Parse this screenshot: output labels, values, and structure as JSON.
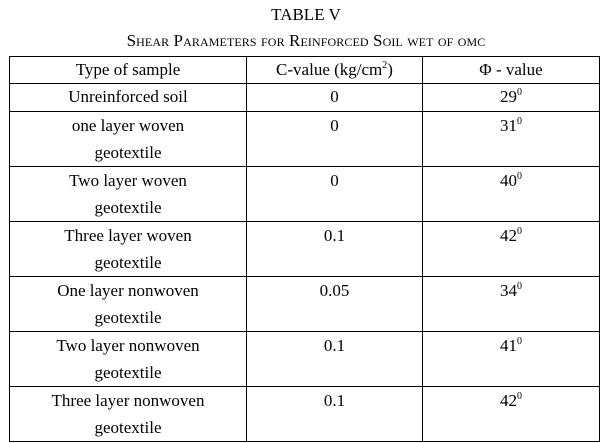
{
  "title": "TABLE V",
  "caption": "Shear Parameters for Reinforced Soil wet of omc",
  "headers": {
    "sample": "Type of sample",
    "c_value_prefix": "C-value (kg/cm",
    "c_value_sup": "2",
    "c_value_suffix": ")",
    "phi_value": "Φ - value"
  },
  "rows": [
    {
      "sample_line1": "Unreinforced soil",
      "sample_line2": "",
      "c": "0",
      "phi": "29",
      "phi_sup": "0"
    },
    {
      "sample_line1": "one layer woven",
      "sample_line2": "geotextile",
      "c": "0",
      "phi": "31",
      "phi_sup": "0"
    },
    {
      "sample_line1": "Two layer woven",
      "sample_line2": "geotextile",
      "c": "0",
      "phi": "40",
      "phi_sup": "0"
    },
    {
      "sample_line1": "Three layer woven",
      "sample_line2": "geotextile",
      "c": "0.1",
      "phi": "42",
      "phi_sup": "0"
    },
    {
      "sample_line1": "One layer nonwoven",
      "sample_line2": "geotextile",
      "c": "0.05",
      "phi": "34",
      "phi_sup": "0"
    },
    {
      "sample_line1": "Two layer nonwoven",
      "sample_line2": "geotextile",
      "c": "0.1",
      "phi": "41",
      "phi_sup": "0"
    },
    {
      "sample_line1": "Three layer nonwoven",
      "sample_line2": "geotextile",
      "c": "0.1",
      "phi": "42",
      "phi_sup": "0"
    }
  ]
}
